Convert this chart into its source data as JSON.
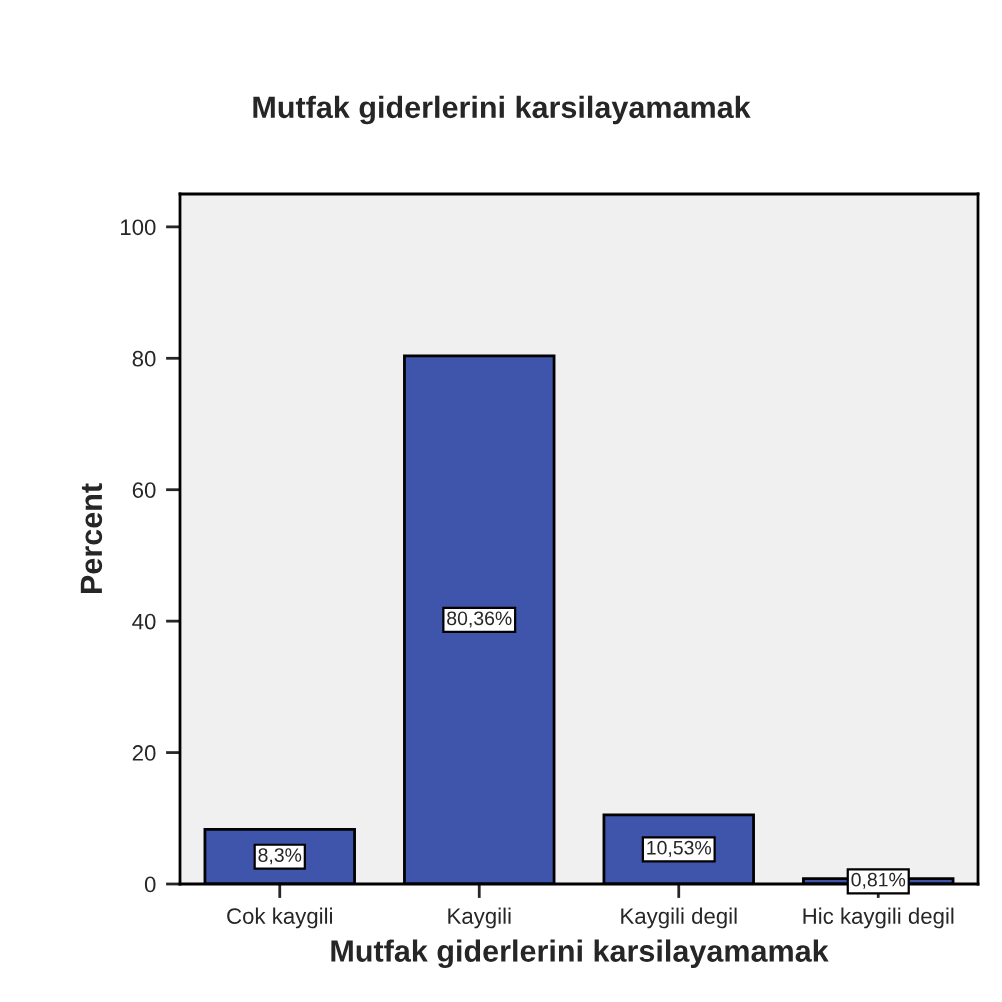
{
  "chart_data": {
    "type": "bar",
    "title": "Mutfak giderlerini karsilayamamak",
    "xlabel": "Mutfak giderlerini karsilayamamak",
    "ylabel": "Percent",
    "categories": [
      "Cok kaygili",
      "Kaygili",
      "Kaygili degil",
      "Hic kaygili degil"
    ],
    "values": [
      8.3,
      80.36,
      10.53,
      0.81
    ],
    "value_labels": [
      "8,3%",
      "80,36%",
      "10,53%",
      "0,81%"
    ],
    "color": "#3e55ab",
    "ylim": [
      0,
      105
    ],
    "yticks": [
      0,
      20,
      40,
      60,
      80,
      100
    ],
    "grid": false,
    "legend": false
  }
}
